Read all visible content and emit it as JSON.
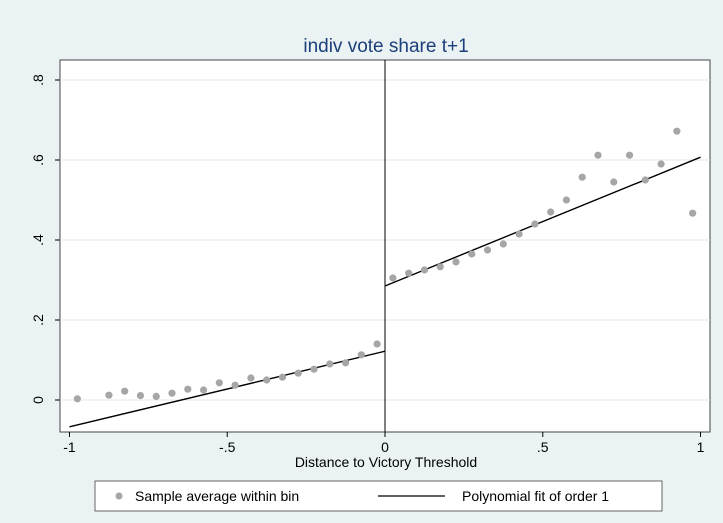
{
  "chart_data": {
    "type": "scatter",
    "title": "indiv vote share t+1",
    "xlabel": "Distance to Victory Threshold",
    "ylabel": "",
    "xlim": [
      -1.03,
      1.03
    ],
    "ylim": [
      -0.08,
      0.85
    ],
    "xticks": [
      {
        "value": -1,
        "label": "-1"
      },
      {
        "value": -0.5,
        "label": "-.5"
      },
      {
        "value": 0,
        "label": "0"
      },
      {
        "value": 0.5,
        "label": ".5"
      },
      {
        "value": 1,
        "label": "1"
      }
    ],
    "yticks": [
      {
        "value": 0,
        "label": "0"
      },
      {
        "value": 0.2,
        "label": ".2"
      },
      {
        "value": 0.4,
        "label": ".4"
      },
      {
        "value": 0.6,
        "label": ".6"
      },
      {
        "value": 0.8,
        "label": ".8"
      }
    ],
    "grid": "horizontal",
    "threshold_line_x": 0,
    "legend_position": "bottom",
    "colors": {
      "background": "#eaf2f3",
      "plot_background": "#ffffff",
      "points": "#a6a6a6",
      "fit_line": "#000000",
      "title": "#1c3f7a"
    },
    "series": [
      {
        "name": "Sample average within bin",
        "kind": "points",
        "x": [
          -0.975,
          -0.875,
          -0.825,
          -0.775,
          -0.725,
          -0.675,
          -0.625,
          -0.575,
          -0.525,
          -0.475,
          -0.425,
          -0.375,
          -0.325,
          -0.275,
          -0.225,
          -0.175,
          -0.125,
          -0.075,
          -0.025,
          0.025,
          0.075,
          0.125,
          0.175,
          0.225,
          0.275,
          0.325,
          0.375,
          0.425,
          0.475,
          0.525,
          0.575,
          0.625,
          0.675,
          0.725,
          0.775,
          0.825,
          0.875,
          0.925,
          0.975
        ],
        "y": [
          0.003,
          0.012,
          0.022,
          0.011,
          0.009,
          0.017,
          0.027,
          0.025,
          0.043,
          0.037,
          0.055,
          0.05,
          0.057,
          0.067,
          0.077,
          0.09,
          0.093,
          0.113,
          0.14,
          0.305,
          0.317,
          0.325,
          0.333,
          0.345,
          0.365,
          0.375,
          0.39,
          0.415,
          0.44,
          0.47,
          0.5,
          0.557,
          0.612,
          0.545,
          0.612,
          0.55,
          0.59,
          0.672,
          0.467
        ]
      },
      {
        "name": "Polynomial fit of order 1",
        "kind": "line",
        "segments": [
          {
            "x": [
              -1,
              0
            ],
            "y": [
              -0.067,
              0.122
            ]
          },
          {
            "x": [
              0,
              1
            ],
            "y": [
              0.285,
              0.607
            ]
          }
        ]
      }
    ]
  }
}
